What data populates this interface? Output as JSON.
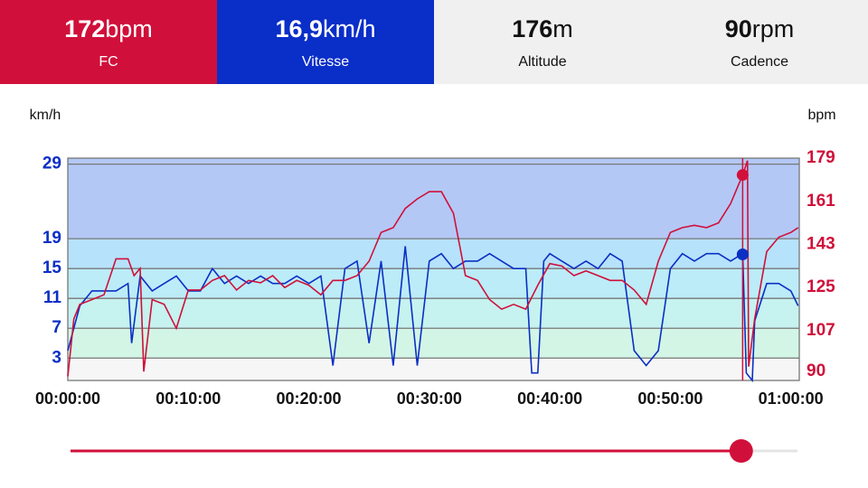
{
  "header": {
    "tiles": [
      {
        "value": "172",
        "unit": "bpm",
        "label": "FC"
      },
      {
        "value": "16,9",
        "unit": "km/h",
        "label": "Vitesse"
      },
      {
        "value": "176",
        "unit": "m",
        "label": "Altitude"
      },
      {
        "value": "90",
        "unit": "rpm",
        "label": "Cadence"
      }
    ]
  },
  "chart_data": {
    "type": "line",
    "y_label": "km/h",
    "y2_label": "bpm",
    "xlim": [
      0,
      60.7
    ],
    "xticks": [
      {
        "value": 0,
        "label": "00:00:00"
      },
      {
        "value": 10,
        "label": "00:10:00"
      },
      {
        "value": 20,
        "label": "00:20:00"
      },
      {
        "value": 30,
        "label": "00:30:00"
      },
      {
        "value": 40,
        "label": "00:40:00"
      },
      {
        "value": 50,
        "label": "00:50:00"
      },
      {
        "value": 60,
        "label": "01:00:00"
      }
    ],
    "ylim": [
      0,
      29.8
    ],
    "yticks": [
      3,
      7,
      11,
      15,
      19,
      29
    ],
    "y2lim": [
      86.25,
      179
    ],
    "y2ticks": [
      90,
      107,
      125,
      143,
      161,
      179
    ],
    "zone_colors": [
      "#f6f6f6",
      "#d3f5e6",
      "#c6f2f0",
      "#bcecf8",
      "#b6e2fb",
      "#b4c8f6"
    ],
    "series": [
      {
        "name": "Vitesse",
        "color": "#0b2fc4",
        "x": [
          0,
          1,
          2,
          3,
          4,
          5,
          5.3,
          6,
          7,
          8,
          9,
          10,
          11,
          12,
          13,
          14,
          15,
          16,
          17,
          18,
          19,
          20,
          21,
          22,
          23,
          24,
          25,
          26,
          27,
          28,
          29,
          30,
          31,
          32,
          33,
          34,
          35,
          36,
          37,
          38,
          38.5,
          39,
          39.5,
          40,
          41,
          42,
          43,
          44,
          45,
          46,
          47,
          48,
          49,
          50,
          51,
          52,
          53,
          54,
          55,
          56,
          56.3,
          56.8,
          57,
          58,
          59,
          60,
          60.6
        ],
        "values": [
          4,
          10,
          12,
          12,
          12,
          13,
          5,
          14,
          12,
          13,
          14,
          12,
          12,
          15,
          13,
          14,
          13,
          14,
          13,
          13,
          14,
          13,
          14,
          2,
          15,
          16,
          5,
          16,
          2,
          18,
          2,
          16,
          17,
          15,
          16,
          16,
          17,
          16,
          15,
          15,
          1,
          1,
          16,
          17,
          16,
          15,
          16,
          15,
          17,
          16,
          4,
          2,
          4,
          15,
          17,
          16,
          17,
          17,
          16,
          17,
          1,
          0,
          8,
          13,
          13,
          12,
          10
        ]
      },
      {
        "name": "FC",
        "color": "#d0103a",
        "axis": "y2",
        "x": [
          0,
          0.5,
          1,
          2,
          3,
          4,
          5,
          5.5,
          6,
          6.3,
          7,
          8,
          9,
          10,
          11,
          12,
          13,
          14,
          15,
          16,
          17,
          18,
          19,
          20,
          21,
          22,
          23,
          24,
          25,
          26,
          27,
          28,
          29,
          30,
          31,
          32,
          33,
          34,
          35,
          36,
          37,
          38,
          39,
          40,
          41,
          42,
          43,
          44,
          45,
          46,
          47,
          48,
          49,
          50,
          51,
          52,
          53,
          54,
          55,
          56,
          56.4,
          56.5,
          57,
          58,
          59,
          60,
          60.6
        ],
        "values": [
          88,
          112,
          118,
          120,
          122,
          137,
          137,
          130,
          133,
          90,
          120,
          118,
          108,
          124,
          124,
          128,
          130,
          124,
          128,
          127,
          130,
          125,
          128,
          126,
          122,
          128,
          128,
          130,
          136,
          148,
          150,
          158,
          162,
          165,
          165,
          156,
          130,
          128,
          120,
          116,
          118,
          116,
          126,
          135,
          134,
          130,
          132,
          130,
          128,
          128,
          124,
          118,
          136,
          148,
          150,
          151,
          150,
          152,
          160,
          172,
          178,
          92,
          112,
          140,
          146,
          148,
          150
        ]
      }
    ],
    "cursor": {
      "x": 56,
      "speed": 16.9,
      "hr": 172
    }
  }
}
